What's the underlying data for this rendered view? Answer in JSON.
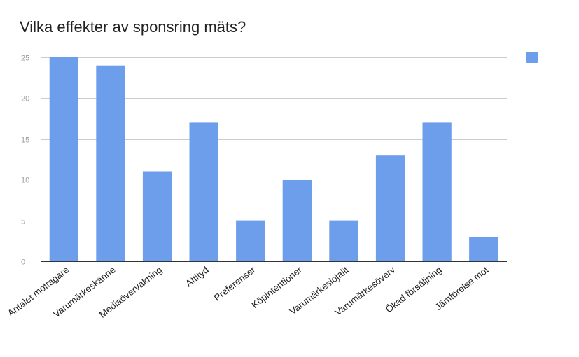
{
  "chart_data": {
    "type": "bar",
    "title": "Vilka effekter av sponsring mäts?",
    "xlabel": "",
    "ylabel": "",
    "categories": [
      "Antalet mottagare",
      "Varumärkeskänne",
      "Mediaövervakning",
      "Attityd",
      "Preferenser",
      "Köpintentioner",
      "Varumärkeslojalit",
      "Varumärkesöverv",
      "Ökad försäljning",
      "Jämförelse mot"
    ],
    "series": [
      {
        "values": [
          25,
          24,
          11,
          17,
          5,
          10,
          5,
          13,
          17,
          3
        ]
      }
    ],
    "ylim": [
      0,
      25
    ],
    "yticks": [
      0,
      5,
      10,
      15,
      20,
      25
    ],
    "grid": true,
    "legend": "right",
    "colors": {
      "bar": "#6d9eeb",
      "grid": "#cccccc",
      "axis": "#333333"
    }
  }
}
